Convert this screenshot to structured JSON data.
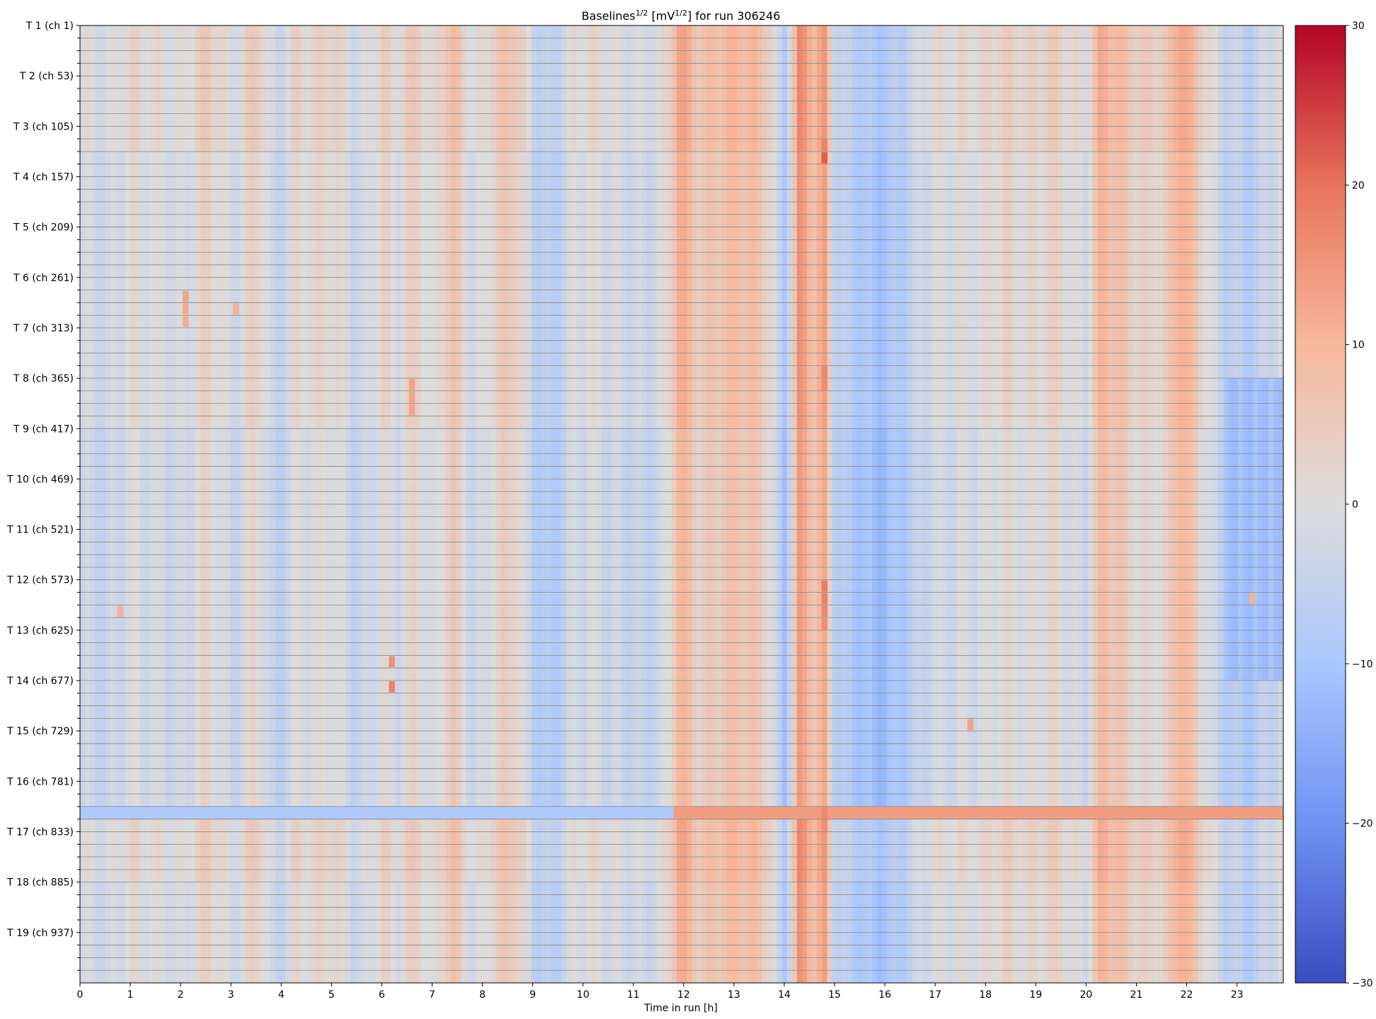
{
  "chart_data": {
    "type": "heatmap",
    "title": {
      "prefix": "Baselines",
      "prefix_sup": "1/2",
      "middle": " [mV",
      "middle_sup": "1/2",
      "suffix": "] for run 306246"
    },
    "xlabel": "Time in run [h]",
    "ylabel": "",
    "x_ticks": [
      "0",
      "1",
      "2",
      "3",
      "4",
      "5",
      "6",
      "7",
      "8",
      "9",
      "10",
      "11",
      "12",
      "13",
      "14",
      "15",
      "16",
      "17",
      "18",
      "19",
      "20",
      "21",
      "22",
      "23"
    ],
    "xlim": [
      0,
      23.92
    ],
    "y_tick_labels": [
      "T 1 (ch 1)",
      "T 2 (ch 53)",
      "T 3 (ch 105)",
      "T 4 (ch 157)",
      "T 5 (ch 209)",
      "T 6 (ch 261)",
      "T 7 (ch 313)",
      "T 8 (ch 365)",
      "T 9 (ch 417)",
      "T 10 (ch 469)",
      "T 11 (ch 521)",
      "T 12 (ch 573)",
      "T 13 (ch 625)",
      "T 14 (ch 677)",
      "T 15 (ch 729)",
      "T 16 (ch 781)",
      "T 17 (ch 833)",
      "T 18 (ch 885)",
      "T 19 (ch 937)"
    ],
    "rows_per_label": 4,
    "row_count": 76,
    "colorbar": {
      "colormap": "coolwarm",
      "range": [
        -30,
        30
      ],
      "ticks": [
        "30",
        "20",
        "10",
        "0",
        "−10",
        "−20",
        "−30"
      ],
      "colors": [
        "#3b4cc0",
        "#6f92f3",
        "#aac7fd",
        "#dddcdc",
        "#f7b89c",
        "#e7745b",
        "#b40426"
      ]
    },
    "features": {
      "column_profile": [
        [
          0.0,
          -2
        ],
        [
          0.5,
          -4
        ],
        [
          1.0,
          2
        ],
        [
          1.5,
          -2
        ],
        [
          2.0,
          -1
        ],
        [
          2.5,
          3
        ],
        [
          3.0,
          -3
        ],
        [
          3.5,
          5
        ],
        [
          3.9,
          -7
        ],
        [
          4.3,
          2
        ],
        [
          5.0,
          1
        ],
        [
          5.5,
          -3
        ],
        [
          6.0,
          2
        ],
        [
          6.3,
          -2
        ],
        [
          6.7,
          5
        ],
        [
          7.0,
          -1
        ],
        [
          7.4,
          6
        ],
        [
          7.8,
          -2
        ],
        [
          8.2,
          3
        ],
        [
          8.6,
          5
        ],
        [
          9.0,
          -4
        ],
        [
          9.4,
          -7
        ],
        [
          9.8,
          -2
        ],
        [
          10.3,
          1
        ],
        [
          10.8,
          -3
        ],
        [
          11.2,
          -4
        ],
        [
          11.7,
          2
        ],
        [
          11.9,
          12
        ],
        [
          12.3,
          4
        ],
        [
          12.8,
          9
        ],
        [
          13.3,
          7
        ],
        [
          13.7,
          4
        ],
        [
          14.0,
          -9
        ],
        [
          14.3,
          14
        ],
        [
          14.6,
          8
        ],
        [
          14.8,
          12
        ],
        [
          15.0,
          -3
        ],
        [
          15.4,
          -8
        ],
        [
          15.8,
          -12
        ],
        [
          16.5,
          -5
        ],
        [
          17.0,
          -2
        ],
        [
          17.5,
          1
        ],
        [
          18.0,
          -1
        ],
        [
          18.5,
          3
        ],
        [
          19.0,
          1
        ],
        [
          19.5,
          2
        ],
        [
          20.0,
          -1
        ],
        [
          20.3,
          9
        ],
        [
          20.8,
          6
        ],
        [
          21.2,
          3
        ],
        [
          21.6,
          2
        ],
        [
          21.9,
          13
        ],
        [
          22.3,
          4
        ],
        [
          22.7,
          -6
        ],
        [
          23.2,
          -7
        ],
        [
          23.6,
          -3
        ],
        [
          23.92,
          -3
        ]
      ],
      "row_bands": [
        {
          "from_row": 0,
          "to_row": 10,
          "shift": 1
        },
        {
          "from_row": 10,
          "to_row": 32,
          "shift": 0
        },
        {
          "from_row": 32,
          "to_row": 62,
          "shift": -1
        },
        {
          "from_row": 62,
          "to_row": 68,
          "shift": 1
        },
        {
          "from_row": 68,
          "to_row": 76,
          "shift": 0
        }
      ],
      "special_rows": [
        {
          "row": 62,
          "from_h": 0.0,
          "to_h": 11.8,
          "value": -9
        },
        {
          "row": 62,
          "from_h": 11.8,
          "to_h": 23.92,
          "value": 14
        }
      ],
      "region_offsets": [
        {
          "row_from": 28,
          "row_to": 52,
          "h_from": 22.75,
          "h_to": 23.92,
          "value": -12
        }
      ],
      "hot_cells": [
        {
          "h": 14.8,
          "row": 9,
          "value": 18
        },
        {
          "h": 14.8,
          "row": 10,
          "value": 22
        },
        {
          "h": 14.8,
          "row": 27,
          "value": 17
        },
        {
          "h": 14.8,
          "row": 28,
          "value": 16
        },
        {
          "h": 14.8,
          "row": 44,
          "value": 19
        },
        {
          "h": 14.8,
          "row": 45,
          "value": 18
        },
        {
          "h": 14.8,
          "row": 46,
          "value": 17
        },
        {
          "h": 14.8,
          "row": 47,
          "value": 16
        },
        {
          "h": 14.8,
          "row": 62,
          "value": 17
        },
        {
          "h": 14.8,
          "row": 63,
          "value": 16
        },
        {
          "h": 6.2,
          "row": 50,
          "value": 16
        },
        {
          "h": 6.2,
          "row": 52,
          "value": 18
        },
        {
          "h": 6.6,
          "row": 28,
          "value": 13
        },
        {
          "h": 6.6,
          "row": 29,
          "value": 13
        },
        {
          "h": 6.6,
          "row": 30,
          "value": 13
        },
        {
          "h": 2.1,
          "row": 21,
          "value": 13
        },
        {
          "h": 2.1,
          "row": 22,
          "value": 12
        },
        {
          "h": 2.1,
          "row": 23,
          "value": 12
        },
        {
          "h": 3.1,
          "row": 22,
          "value": 11
        },
        {
          "h": 17.7,
          "row": 55,
          "value": 13
        },
        {
          "h": 0.8,
          "row": 46,
          "value": 11
        },
        {
          "h": 23.3,
          "row": 45,
          "value": 11
        }
      ]
    }
  }
}
